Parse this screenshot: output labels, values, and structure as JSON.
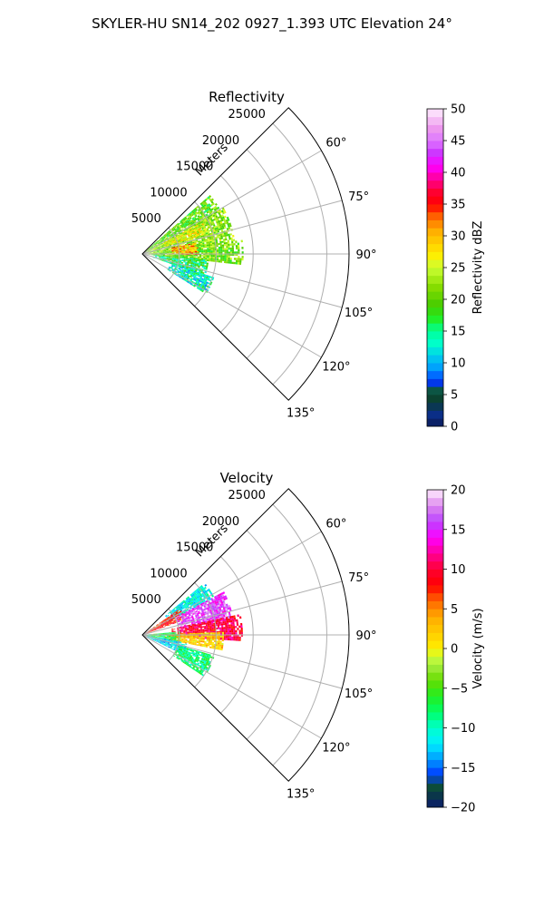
{
  "figure": {
    "title": "SKYLER-HU  SN14_202  0927_1.393 UTC Elevation 24°"
  },
  "chart_data": [
    {
      "type": "polar-sector",
      "title": "Reflectivity",
      "radial_label": "Meters",
      "radial_ticks": [
        "5000",
        "10000",
        "15000",
        "20000",
        "25000"
      ],
      "radial_tick_values": [
        5000,
        10000,
        15000,
        20000,
        25000
      ],
      "rlim": [
        0,
        28000
      ],
      "theta_ticks": [
        "60°",
        "75°",
        "90°",
        "105°",
        "120°",
        "135°"
      ],
      "theta_tick_values": [
        60,
        75,
        90,
        105,
        120,
        135
      ],
      "theta_range": [
        45,
        135
      ],
      "grid": true,
      "colorbar": {
        "label": "Reflectivity dBZ",
        "min": 0,
        "max": 50,
        "ticks": [
          "0",
          "5",
          "10",
          "15",
          "20",
          "25",
          "30",
          "35",
          "40",
          "45",
          "50"
        ],
        "tick_values": [
          0,
          5,
          10,
          15,
          20,
          25,
          30,
          35,
          40,
          45,
          50
        ]
      },
      "echo_regions": [
        {
          "az": [
            49,
            60
          ],
          "r": [
            0,
            12000
          ],
          "value": 20
        },
        {
          "az": [
            60,
            82
          ],
          "r": [
            0,
            12500
          ],
          "value": 22
        },
        {
          "az": [
            62,
            72
          ],
          "r": [
            3000,
            9000
          ],
          "value": 26
        },
        {
          "az": [
            82,
            95
          ],
          "r": [
            0,
            13500
          ],
          "value": 21
        },
        {
          "az": [
            78,
            90
          ],
          "r": [
            4000,
            7500
          ],
          "value": 31
        },
        {
          "az": [
            95,
            108
          ],
          "r": [
            1500,
            9000
          ],
          "value": 16
        },
        {
          "az": [
            108,
            122
          ],
          "r": [
            4000,
            10000
          ],
          "value": 13
        }
      ]
    },
    {
      "type": "polar-sector",
      "title": "Velocity",
      "radial_label": "Meters",
      "radial_ticks": [
        "5000",
        "10000",
        "15000",
        "20000",
        "25000"
      ],
      "radial_tick_values": [
        5000,
        10000,
        15000,
        20000,
        25000
      ],
      "rlim": [
        0,
        28000
      ],
      "theta_ticks": [
        "60°",
        "75°",
        "90°",
        "105°",
        "120°",
        "135°"
      ],
      "theta_tick_values": [
        60,
        75,
        90,
        105,
        120,
        135
      ],
      "theta_range": [
        45,
        135
      ],
      "grid": true,
      "colorbar": {
        "label": "Velocity (m/s)",
        "min": -20,
        "max": 20,
        "ticks": [
          "−20",
          "−15",
          "−10",
          "−5",
          "0",
          "5",
          "10",
          "15",
          "20"
        ],
        "tick_values": [
          -20,
          -15,
          -10,
          -5,
          0,
          5,
          10,
          15,
          20
        ]
      },
      "echo_regions": [
        {
          "az": [
            50,
            62
          ],
          "r": [
            4000,
            11000
          ],
          "value": -11
        },
        {
          "az": [
            55,
            70
          ],
          "r": [
            0,
            6000
          ],
          "value": 8
        },
        {
          "az": [
            62,
            80
          ],
          "r": [
            5000,
            12500
          ],
          "value": 16
        },
        {
          "az": [
            78,
            93
          ],
          "r": [
            4000,
            13500
          ],
          "value": 10
        },
        {
          "az": [
            88,
            100
          ],
          "r": [
            3000,
            11000
          ],
          "value": 2
        },
        {
          "az": [
            85,
            100
          ],
          "r": [
            0,
            5000
          ],
          "value": -7
        },
        {
          "az": [
            100,
            115
          ],
          "r": [
            0,
            6000
          ],
          "value": -12
        },
        {
          "az": [
            106,
            124
          ],
          "r": [
            5000,
            10000
          ],
          "value": -8
        }
      ]
    }
  ]
}
